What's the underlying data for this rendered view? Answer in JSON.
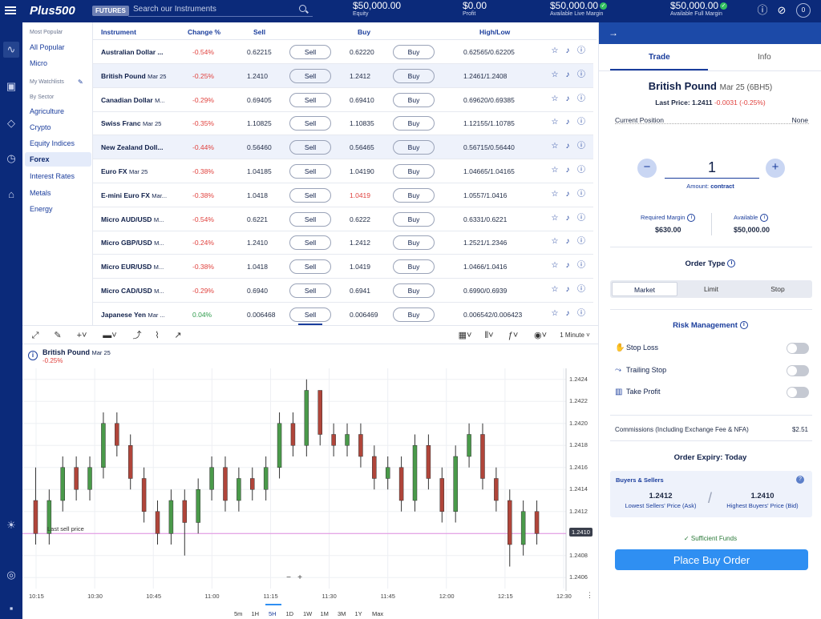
{
  "topbar": {
    "logo": "Plus500",
    "badge": "FUTURES",
    "search_placeholder": "Search our Instruments",
    "stats": [
      {
        "value": "$50,000.00",
        "label": "Equity",
        "check": false
      },
      {
        "value": "$0.00",
        "label": "Profit",
        "check": false
      },
      {
        "value": "$50,000.00",
        "label": "Available Live Margin",
        "check": true
      },
      {
        "value": "$50,000.00",
        "label": "Available Full Margin",
        "check": true
      }
    ],
    "avatar": "0"
  },
  "categories": {
    "top": [
      "All Popular",
      "Micro"
    ],
    "hdr_popular": "Most Popular",
    "hdr_watch": "My Watchlists",
    "hdr_sector": "By Sector",
    "sectors": [
      "Agriculture",
      "Crypto",
      "Equity Indices",
      "Forex",
      "Interest Rates",
      "Metals",
      "Energy"
    ],
    "selected": "Forex"
  },
  "table": {
    "headers": {
      "instrument": "Instrument",
      "change": "Change %",
      "sell": "Sell",
      "buy": "Buy",
      "highlow": "High/Low"
    },
    "sell_label": "Sell",
    "buy_label": "Buy",
    "rows": [
      {
        "name": "Australian Dollar ...",
        "sub": "",
        "change": "-0.54%",
        "dir": "down",
        "sell": "0.62215",
        "buy": "0.62220",
        "hl": "0.62565/0.62205",
        "buy_red": false
      },
      {
        "name": "British Pound",
        "sub": "Mar 25",
        "change": "-0.25%",
        "dir": "down",
        "sell": "1.2410",
        "buy": "1.2412",
        "hl": "1.2461/1.2408",
        "buy_red": false
      },
      {
        "name": "Canadian Dollar",
        "sub": "M...",
        "change": "-0.29%",
        "dir": "down",
        "sell": "0.69405",
        "buy": "0.69410",
        "hl": "0.69620/0.69385",
        "buy_red": false
      },
      {
        "name": "Swiss Franc",
        "sub": "Mar 25",
        "change": "-0.35%",
        "dir": "down",
        "sell": "1.10825",
        "buy": "1.10835",
        "hl": "1.12155/1.10785",
        "buy_red": false
      },
      {
        "name": "New Zealand Doll...",
        "sub": "",
        "change": "-0.44%",
        "dir": "down",
        "sell": "0.56460",
        "buy": "0.56465",
        "hl": "0.56715/0.56440",
        "buy_red": false
      },
      {
        "name": "Euro FX",
        "sub": "Mar 25",
        "change": "-0.38%",
        "dir": "down",
        "sell": "1.04185",
        "buy": "1.04190",
        "hl": "1.04665/1.04165",
        "buy_red": false
      },
      {
        "name": "E-mini Euro FX",
        "sub": "Mar...",
        "change": "-0.38%",
        "dir": "down",
        "sell": "1.0418",
        "buy": "1.0419",
        "hl": "1.0557/1.0416",
        "buy_red": true
      },
      {
        "name": "Micro AUD/USD",
        "sub": "M...",
        "change": "-0.54%",
        "dir": "down",
        "sell": "0.6221",
        "buy": "0.6222",
        "hl": "0.6331/0.6221",
        "buy_red": false
      },
      {
        "name": "Micro GBP/USD",
        "sub": "M...",
        "change": "-0.24%",
        "dir": "down",
        "sell": "1.2410",
        "buy": "1.2412",
        "hl": "1.2521/1.2346",
        "buy_red": false
      },
      {
        "name": "Micro EUR/USD",
        "sub": "M...",
        "change": "-0.38%",
        "dir": "down",
        "sell": "1.0418",
        "buy": "1.0419",
        "hl": "1.0466/1.0416",
        "buy_red": false
      },
      {
        "name": "Micro CAD/USD",
        "sub": "M...",
        "change": "-0.29%",
        "dir": "down",
        "sell": "0.6940",
        "buy": "0.6941",
        "hl": "0.6990/0.6939",
        "buy_red": false
      },
      {
        "name": "Japanese Yen",
        "sub": "Mar ...",
        "change": "0.04%",
        "dir": "up",
        "sell": "0.006468",
        "buy": "0.006469",
        "hl": "0.006542/0.006423",
        "buy_red": false
      }
    ]
  },
  "chart_toolbar": {
    "interval": "1 Minute"
  },
  "chart": {
    "title": "British Pound",
    "sub": "Mar 25",
    "change": "-0.25%",
    "last_sell_label": "Last sell price",
    "price_tag": "1.2410",
    "periods": [
      "5m",
      "1H",
      "5H",
      "1D",
      "1W",
      "1M",
      "3M",
      "1Y",
      "Max"
    ],
    "selected_period": "5H"
  },
  "chart_data": {
    "type": "candlestick",
    "ylim": [
      1.2405,
      1.2425
    ],
    "yticks": [
      "1.2424",
      "1.2422",
      "1.2420",
      "1.2418",
      "1.2416",
      "1.2414",
      "1.2412",
      "1.2410",
      "1.2408",
      "1.2406"
    ],
    "xticks": [
      "10:15",
      "10:30",
      "10:45",
      "11:00",
      "11:15",
      "11:30",
      "11:45",
      "12:00",
      "12:15",
      "12:30"
    ],
    "last_sell": 1.241,
    "candles": [
      [
        1.2413,
        1.241,
        1.2416,
        1.2409
      ],
      [
        1.241,
        1.2413,
        1.2414,
        1.2409
      ],
      [
        1.2413,
        1.2416,
        1.2417,
        1.2412
      ],
      [
        1.2416,
        1.2414,
        1.2417,
        1.2413
      ],
      [
        1.2414,
        1.2416,
        1.2417,
        1.2413
      ],
      [
        1.2416,
        1.242,
        1.2421,
        1.2415
      ],
      [
        1.242,
        1.2418,
        1.2421,
        1.2417
      ],
      [
        1.2418,
        1.2415,
        1.2419,
        1.2414
      ],
      [
        1.2415,
        1.2412,
        1.2416,
        1.2411
      ],
      [
        1.2412,
        1.241,
        1.2413,
        1.2409
      ],
      [
        1.241,
        1.2413,
        1.2414,
        1.2409
      ],
      [
        1.2413,
        1.2411,
        1.2414,
        1.2408
      ],
      [
        1.2411,
        1.2414,
        1.2415,
        1.241
      ],
      [
        1.2414,
        1.2416,
        1.2417,
        1.2413
      ],
      [
        1.2416,
        1.2413,
        1.2417,
        1.2412
      ],
      [
        1.2413,
        1.2415,
        1.2416,
        1.2412
      ],
      [
        1.2415,
        1.2414,
        1.2416,
        1.2413
      ],
      [
        1.2414,
        1.2416,
        1.2417,
        1.2413
      ],
      [
        1.2416,
        1.242,
        1.2421,
        1.2415
      ],
      [
        1.242,
        1.2418,
        1.2421,
        1.2417
      ],
      [
        1.2418,
        1.2423,
        1.2424,
        1.2417
      ],
      [
        1.2423,
        1.2419,
        1.2423,
        1.2418
      ],
      [
        1.2419,
        1.2418,
        1.242,
        1.2417
      ],
      [
        1.2418,
        1.2419,
        1.242,
        1.2417
      ],
      [
        1.2419,
        1.2417,
        1.242,
        1.2416
      ],
      [
        1.2417,
        1.2415,
        1.2418,
        1.2414
      ],
      [
        1.2415,
        1.2416,
        1.2417,
        1.2414
      ],
      [
        1.2416,
        1.2413,
        1.2417,
        1.2412
      ],
      [
        1.2413,
        1.2418,
        1.2419,
        1.2412
      ],
      [
        1.2418,
        1.2415,
        1.2419,
        1.2414
      ],
      [
        1.2415,
        1.2412,
        1.2416,
        1.2411
      ],
      [
        1.2412,
        1.2417,
        1.2418,
        1.2411
      ],
      [
        1.2417,
        1.2419,
        1.242,
        1.2416
      ],
      [
        1.2419,
        1.2415,
        1.242,
        1.2414
      ],
      [
        1.2415,
        1.2413,
        1.2416,
        1.2412
      ],
      [
        1.2413,
        1.2409,
        1.2414,
        1.2407
      ],
      [
        1.2409,
        1.2412,
        1.2413,
        1.2408
      ],
      [
        1.2412,
        1.241,
        1.2413,
        1.2409
      ]
    ]
  },
  "panel": {
    "tabs": [
      "Trade",
      "Info"
    ],
    "instrument": "British Pound",
    "sub": "Mar 25 (6BH5)",
    "last_price_label": "Last Price: 1.2411",
    "last_change": "-0.0031 (-0.25%)",
    "current_position_label": "Current Position",
    "current_position_value": "None",
    "quantity": "1",
    "amount_label": "Amount:",
    "amount_unit": "contract",
    "required_margin_label": "Required Margin",
    "required_margin": "$630.00",
    "available_label": "Available",
    "available": "$50,000.00",
    "order_type_label": "Order Type",
    "order_types": [
      "Market",
      "Limit",
      "Stop"
    ],
    "selected_order_type": "Market",
    "risk_label": "Risk Management",
    "risk_items": [
      "Stop Loss",
      "Trailing Stop",
      "Take Profit"
    ],
    "commissions_label": "Commissions (Including Exchange Fee & NFA)",
    "commissions": "$2.51",
    "expiry_label": "Order Expiry: Today",
    "buyers_sellers_label": "Buyers & Sellers",
    "lowest_sellers": "1.2412",
    "lowest_sellers_label": "Lowest Sellers' Price (Ask)",
    "highest_buyers": "1.2410",
    "highest_buyers_label": "Highest Buyers' Price (Bid)",
    "funds_label": "Sufficient Funds",
    "place_button": "Place Buy Order"
  }
}
